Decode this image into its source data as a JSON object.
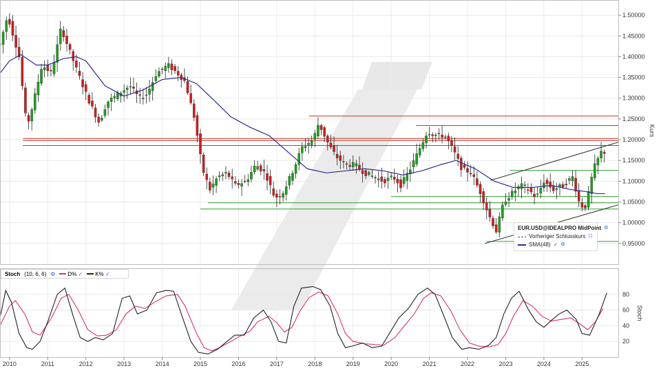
{
  "chart_data": [
    {
      "type": "candlestick",
      "title": "EUR.USD@IDEALPRO MidPoint",
      "ylabel": "Kurs",
      "ylim": [
        0.9,
        1.53
      ],
      "xlim": [
        2009.75,
        2025.95
      ],
      "x_ticks": [
        "2010",
        "2011",
        "2012",
        "2013",
        "2014",
        "2015",
        "2016",
        "2017",
        "2018",
        "2019",
        "2020",
        "2021",
        "2022",
        "2023",
        "2024",
        "2025"
      ],
      "y_ticks": [
        "1.50000",
        "1.45000",
        "1.40000",
        "1.35000",
        "1.30000",
        "1.25000",
        "1.20000",
        "1.15000",
        "1.10000",
        "1.05000",
        "1.00000",
        "0.95000"
      ],
      "grid": true,
      "legend": [
        "EUR.USD@IDEALPRO MidPoint",
        "Vorheriger Schlusskurs",
        "SMA(48)"
      ],
      "legend_position": "bottom-right",
      "colors": {
        "up": "#1e9e1e",
        "down": "#cc1f1f",
        "sma": "#2b2b8f",
        "resistance": "#c0392b",
        "support": "#2ea02e",
        "trend": "#333333"
      },
      "close_path": [
        [
          2009.75,
          1.43
        ],
        [
          2009.95,
          1.5
        ],
        [
          2010.25,
          1.4
        ],
        [
          2010.45,
          1.23
        ],
        [
          2010.6,
          1.28
        ],
        [
          2010.85,
          1.38
        ],
        [
          2011.1,
          1.36
        ],
        [
          2011.35,
          1.47
        ],
        [
          2011.55,
          1.42
        ],
        [
          2011.75,
          1.37
        ],
        [
          2012.05,
          1.3
        ],
        [
          2012.35,
          1.24
        ],
        [
          2012.55,
          1.29
        ],
        [
          2012.85,
          1.31
        ],
        [
          2013.15,
          1.33
        ],
        [
          2013.4,
          1.3
        ],
        [
          2013.6,
          1.31
        ],
        [
          2013.85,
          1.36
        ],
        [
          2014.15,
          1.38
        ],
        [
          2014.4,
          1.36
        ],
        [
          2014.6,
          1.34
        ],
        [
          2014.85,
          1.25
        ],
        [
          2015.05,
          1.13
        ],
        [
          2015.25,
          1.08
        ],
        [
          2015.45,
          1.11
        ],
        [
          2015.7,
          1.12
        ],
        [
          2015.9,
          1.09
        ],
        [
          2016.2,
          1.1
        ],
        [
          2016.45,
          1.14
        ],
        [
          2016.7,
          1.12
        ],
        [
          2016.95,
          1.06
        ],
        [
          2017.15,
          1.07
        ],
        [
          2017.45,
          1.13
        ],
        [
          2017.65,
          1.18
        ],
        [
          2017.95,
          1.2
        ],
        [
          2018.1,
          1.24
        ],
        [
          2018.35,
          1.19
        ],
        [
          2018.55,
          1.16
        ],
        [
          2018.8,
          1.14
        ],
        [
          2019.05,
          1.14
        ],
        [
          2019.3,
          1.12
        ],
        [
          2019.55,
          1.11
        ],
        [
          2019.8,
          1.1
        ],
        [
          2020.05,
          1.11
        ],
        [
          2020.25,
          1.09
        ],
        [
          2020.5,
          1.13
        ],
        [
          2020.75,
          1.18
        ],
        [
          2020.95,
          1.22
        ],
        [
          2021.15,
          1.21
        ],
        [
          2021.4,
          1.21
        ],
        [
          2021.6,
          1.18
        ],
        [
          2021.85,
          1.13
        ],
        [
          2022.1,
          1.12
        ],
        [
          2022.35,
          1.07
        ],
        [
          2022.55,
          1.02
        ],
        [
          2022.75,
          0.98
        ],
        [
          2022.95,
          1.05
        ],
        [
          2023.15,
          1.07
        ],
        [
          2023.4,
          1.09
        ],
        [
          2023.6,
          1.08
        ],
        [
          2023.8,
          1.06
        ],
        [
          2024.0,
          1.1
        ],
        [
          2024.25,
          1.08
        ],
        [
          2024.5,
          1.09
        ],
        [
          2024.75,
          1.11
        ],
        [
          2024.95,
          1.04
        ],
        [
          2025.1,
          1.04
        ],
        [
          2025.3,
          1.13
        ],
        [
          2025.5,
          1.17
        ],
        [
          2025.65,
          1.17
        ]
      ],
      "sma48": [
        [
          2009.75,
          1.36
        ],
        [
          2010.0,
          1.39
        ],
        [
          2010.3,
          1.405
        ],
        [
          2010.7,
          1.38
        ],
        [
          2011.0,
          1.38
        ],
        [
          2011.4,
          1.395
        ],
        [
          2011.75,
          1.4
        ],
        [
          2012.0,
          1.39
        ],
        [
          2012.5,
          1.33
        ],
        [
          2013.0,
          1.305
        ],
        [
          2013.5,
          1.32
        ],
        [
          2014.0,
          1.345
        ],
        [
          2014.5,
          1.35
        ],
        [
          2014.9,
          1.335
        ],
        [
          2015.3,
          1.3
        ],
        [
          2015.8,
          1.255
        ],
        [
          2016.3,
          1.23
        ],
        [
          2016.8,
          1.21
        ],
        [
          2017.3,
          1.17
        ],
        [
          2017.8,
          1.13
        ],
        [
          2018.3,
          1.12
        ],
        [
          2018.8,
          1.125
        ],
        [
          2019.3,
          1.13
        ],
        [
          2019.8,
          1.125
        ],
        [
          2020.3,
          1.115
        ],
        [
          2020.8,
          1.125
        ],
        [
          2021.3,
          1.14
        ],
        [
          2021.7,
          1.15
        ],
        [
          2022.2,
          1.13
        ],
        [
          2022.7,
          1.1
        ],
        [
          2023.2,
          1.085
        ],
        [
          2023.7,
          1.085
        ],
        [
          2024.2,
          1.09
        ],
        [
          2024.7,
          1.08
        ],
        [
          2025.1,
          1.075
        ],
        [
          2025.4,
          1.07
        ],
        [
          2025.6,
          1.07
        ]
      ],
      "horizontal_lines": [
        {
          "y": 1.257,
          "x0": 2017.85,
          "x1": 2025.95,
          "kind": "resistance"
        },
        {
          "y": 1.234,
          "x0": 2020.65,
          "x1": 2025.95,
          "kind": "resistance"
        },
        {
          "y": 1.203,
          "x0": 2010.35,
          "x1": 2025.95,
          "kind": "resistance"
        },
        {
          "y": 1.198,
          "x0": 2010.35,
          "x1": 2025.95,
          "kind": "resistance"
        },
        {
          "y": 1.186,
          "x0": 2010.35,
          "x1": 2025.95,
          "kind": "resistance"
        },
        {
          "y": 1.126,
          "x0": 2023.1,
          "x1": 2025.95,
          "kind": "support"
        },
        {
          "y": 1.063,
          "x0": 2020.0,
          "x1": 2025.95,
          "kind": "support"
        },
        {
          "y": 1.048,
          "x0": 2015.2,
          "x1": 2025.95,
          "kind": "support"
        },
        {
          "y": 1.033,
          "x0": 2015.0,
          "x1": 2025.95,
          "kind": "support"
        },
        {
          "y": 0.955,
          "x0": 2022.5,
          "x1": 2025.95,
          "kind": "support"
        }
      ],
      "trend_lines": [
        {
          "x0": 2022.6,
          "y0": 1.102,
          "x1": 2025.95,
          "y1": 1.194
        },
        {
          "x0": 2022.45,
          "y0": 0.95,
          "x1": 2025.95,
          "y1": 1.043
        }
      ]
    },
    {
      "type": "line",
      "title": "Stoch",
      "params": "(10, 6, 6)",
      "ylabel": "Stoch",
      "ylim": [
        0,
        100
      ],
      "y_ticks": [
        "80",
        "60",
        "40",
        "20"
      ],
      "series": [
        {
          "name": "D%",
          "color": "#d6336c",
          "values": [
            [
              2009.75,
              40
            ],
            [
              2010.0,
              65
            ],
            [
              2010.15,
              72
            ],
            [
              2010.4,
              55
            ],
            [
              2010.6,
              32
            ],
            [
              2010.8,
              28
            ],
            [
              2011.1,
              50
            ],
            [
              2011.35,
              75
            ],
            [
              2011.55,
              80
            ],
            [
              2011.8,
              60
            ],
            [
              2012.05,
              35
            ],
            [
              2012.3,
              27
            ],
            [
              2012.55,
              28
            ],
            [
              2012.8,
              35
            ],
            [
              2013.05,
              55
            ],
            [
              2013.3,
              65
            ],
            [
              2013.55,
              62
            ],
            [
              2013.8,
              70
            ],
            [
              2014.1,
              78
            ],
            [
              2014.4,
              80
            ],
            [
              2014.6,
              65
            ],
            [
              2014.9,
              30
            ],
            [
              2015.1,
              12
            ],
            [
              2015.3,
              8
            ],
            [
              2015.5,
              12
            ],
            [
              2015.8,
              20
            ],
            [
              2016.05,
              27
            ],
            [
              2016.3,
              33
            ],
            [
              2016.5,
              45
            ],
            [
              2016.8,
              52
            ],
            [
              2017.0,
              44
            ],
            [
              2017.2,
              32
            ],
            [
              2017.4,
              38
            ],
            [
              2017.6,
              58
            ],
            [
              2017.85,
              76
            ],
            [
              2018.1,
              83
            ],
            [
              2018.35,
              78
            ],
            [
              2018.6,
              55
            ],
            [
              2018.8,
              30
            ],
            [
              2019.0,
              20
            ],
            [
              2019.3,
              17
            ],
            [
              2019.6,
              16
            ],
            [
              2019.8,
              15
            ],
            [
              2020.1,
              25
            ],
            [
              2020.35,
              40
            ],
            [
              2020.6,
              55
            ],
            [
              2020.85,
              75
            ],
            [
              2021.05,
              82
            ],
            [
              2021.3,
              78
            ],
            [
              2021.55,
              60
            ],
            [
              2021.8,
              35
            ],
            [
              2022.05,
              18
            ],
            [
              2022.3,
              14
            ],
            [
              2022.55,
              13
            ],
            [
              2022.8,
              16
            ],
            [
              2023.0,
              30
            ],
            [
              2023.2,
              52
            ],
            [
              2023.45,
              72
            ],
            [
              2023.7,
              65
            ],
            [
              2023.95,
              52
            ],
            [
              2024.2,
              46
            ],
            [
              2024.45,
              48
            ],
            [
              2024.7,
              50
            ],
            [
              2024.95,
              42
            ],
            [
              2025.15,
              35
            ],
            [
              2025.35,
              45
            ],
            [
              2025.55,
              62
            ]
          ]
        },
        {
          "name": "K%",
          "color": "#222222",
          "values": [
            [
              2009.75,
              50
            ],
            [
              2009.9,
              85
            ],
            [
              2010.05,
              70
            ],
            [
              2010.25,
              30
            ],
            [
              2010.45,
              12
            ],
            [
              2010.6,
              10
            ],
            [
              2010.8,
              20
            ],
            [
              2011.0,
              45
            ],
            [
              2011.25,
              80
            ],
            [
              2011.45,
              88
            ],
            [
              2011.65,
              55
            ],
            [
              2011.85,
              25
            ],
            [
              2012.05,
              20
            ],
            [
              2012.25,
              25
            ],
            [
              2012.45,
              22
            ],
            [
              2012.7,
              30
            ],
            [
              2012.95,
              75
            ],
            [
              2013.15,
              78
            ],
            [
              2013.35,
              55
            ],
            [
              2013.6,
              60
            ],
            [
              2013.85,
              82
            ],
            [
              2014.1,
              85
            ],
            [
              2014.3,
              84
            ],
            [
              2014.5,
              55
            ],
            [
              2014.75,
              20
            ],
            [
              2014.95,
              6
            ],
            [
              2015.2,
              4
            ],
            [
              2015.45,
              10
            ],
            [
              2015.65,
              18
            ],
            [
              2015.9,
              28
            ],
            [
              2016.15,
              28
            ],
            [
              2016.4,
              50
            ],
            [
              2016.65,
              60
            ],
            [
              2016.85,
              45
            ],
            [
              2017.05,
              20
            ],
            [
              2017.25,
              18
            ],
            [
              2017.45,
              65
            ],
            [
              2017.65,
              88
            ],
            [
              2017.95,
              90
            ],
            [
              2018.15,
              86
            ],
            [
              2018.4,
              65
            ],
            [
              2018.6,
              30
            ],
            [
              2018.8,
              12
            ],
            [
              2019.05,
              15
            ],
            [
              2019.25,
              18
            ],
            [
              2019.5,
              12
            ],
            [
              2019.75,
              14
            ],
            [
              2019.95,
              30
            ],
            [
              2020.2,
              50
            ],
            [
              2020.45,
              62
            ],
            [
              2020.7,
              80
            ],
            [
              2020.95,
              88
            ],
            [
              2021.15,
              80
            ],
            [
              2021.4,
              50
            ],
            [
              2021.6,
              25
            ],
            [
              2021.85,
              10
            ],
            [
              2022.05,
              12
            ],
            [
              2022.3,
              10
            ],
            [
              2022.55,
              15
            ],
            [
              2022.75,
              25
            ],
            [
              2022.95,
              55
            ],
            [
              2023.15,
              75
            ],
            [
              2023.35,
              84
            ],
            [
              2023.6,
              60
            ],
            [
              2023.8,
              45
            ],
            [
              2024.0,
              38
            ],
            [
              2024.2,
              47
            ],
            [
              2024.4,
              55
            ],
            [
              2024.6,
              60
            ],
            [
              2024.85,
              48
            ],
            [
              2025.0,
              30
            ],
            [
              2025.2,
              28
            ],
            [
              2025.45,
              55
            ],
            [
              2025.65,
              82
            ]
          ]
        }
      ]
    }
  ]
}
